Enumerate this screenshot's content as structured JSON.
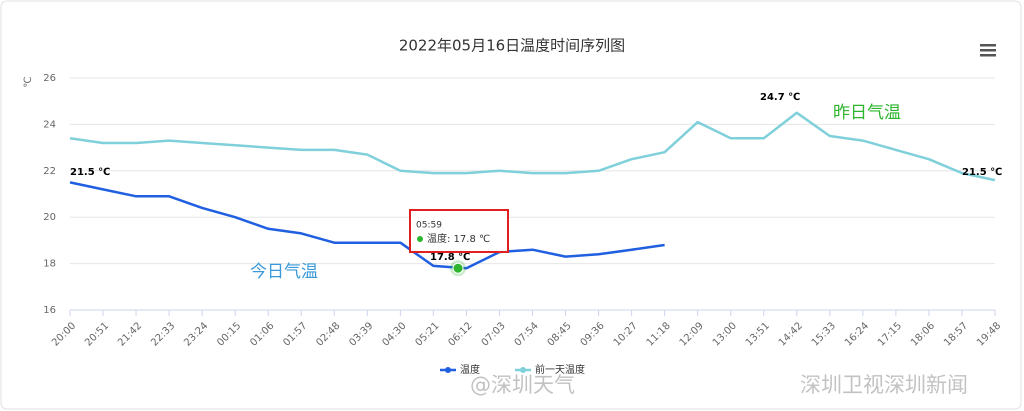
{
  "chart_data": {
    "type": "line",
    "title": "2022年05月16日温度时间序列图",
    "y_unit": "℃",
    "categories": [
      "20:00",
      "20:51",
      "21:42",
      "22:33",
      "23:24",
      "00:15",
      "01:06",
      "01:57",
      "02:48",
      "03:39",
      "04:30",
      "05:21",
      "06:12",
      "07:03",
      "07:54",
      "08:45",
      "09:36",
      "10:27",
      "11:18",
      "12:09",
      "13:00",
      "13:51",
      "14:42",
      "15:33",
      "16:24",
      "17:15",
      "18:06",
      "18:57",
      "19:48"
    ],
    "series": [
      {
        "name": "温度",
        "color": "#1f5fe0",
        "values": [
          21.5,
          21.2,
          20.9,
          20.9,
          20.4,
          20.0,
          19.5,
          19.3,
          18.9,
          18.9,
          18.9,
          17.9,
          17.8,
          18.5,
          18.6,
          18.3,
          18.4,
          18.6,
          18.8,
          null,
          null,
          null,
          null,
          null,
          null,
          null,
          null,
          null,
          null
        ]
      },
      {
        "name": "前一天温度",
        "color": "#7fd0da",
        "values": [
          23.4,
          23.2,
          23.2,
          23.3,
          23.2,
          23.1,
          23.0,
          22.9,
          22.9,
          22.7,
          22.0,
          21.9,
          21.9,
          22.0,
          21.9,
          21.9,
          22.0,
          22.5,
          22.8,
          24.1,
          23.4,
          23.4,
          24.5,
          23.5,
          23.3,
          22.9,
          22.5,
          21.9,
          21.6
        ]
      }
    ],
    "ylim": [
      16,
      26
    ],
    "yticks": [
      16,
      18,
      20,
      22,
      24,
      26
    ],
    "grid": true,
    "annotations": [
      "21.5 ℃",
      "24.7 ℃",
      "21.5 ℃",
      "17.8 ℃",
      "昨日气温",
      "今日气温"
    ],
    "tooltip": {
      "time": "05:59",
      "text": "温度: 17.8 ℃",
      "value": 17.8
    },
    "watermarks": [
      "@深圳天气",
      "深圳卫视深圳新闻"
    ]
  }
}
